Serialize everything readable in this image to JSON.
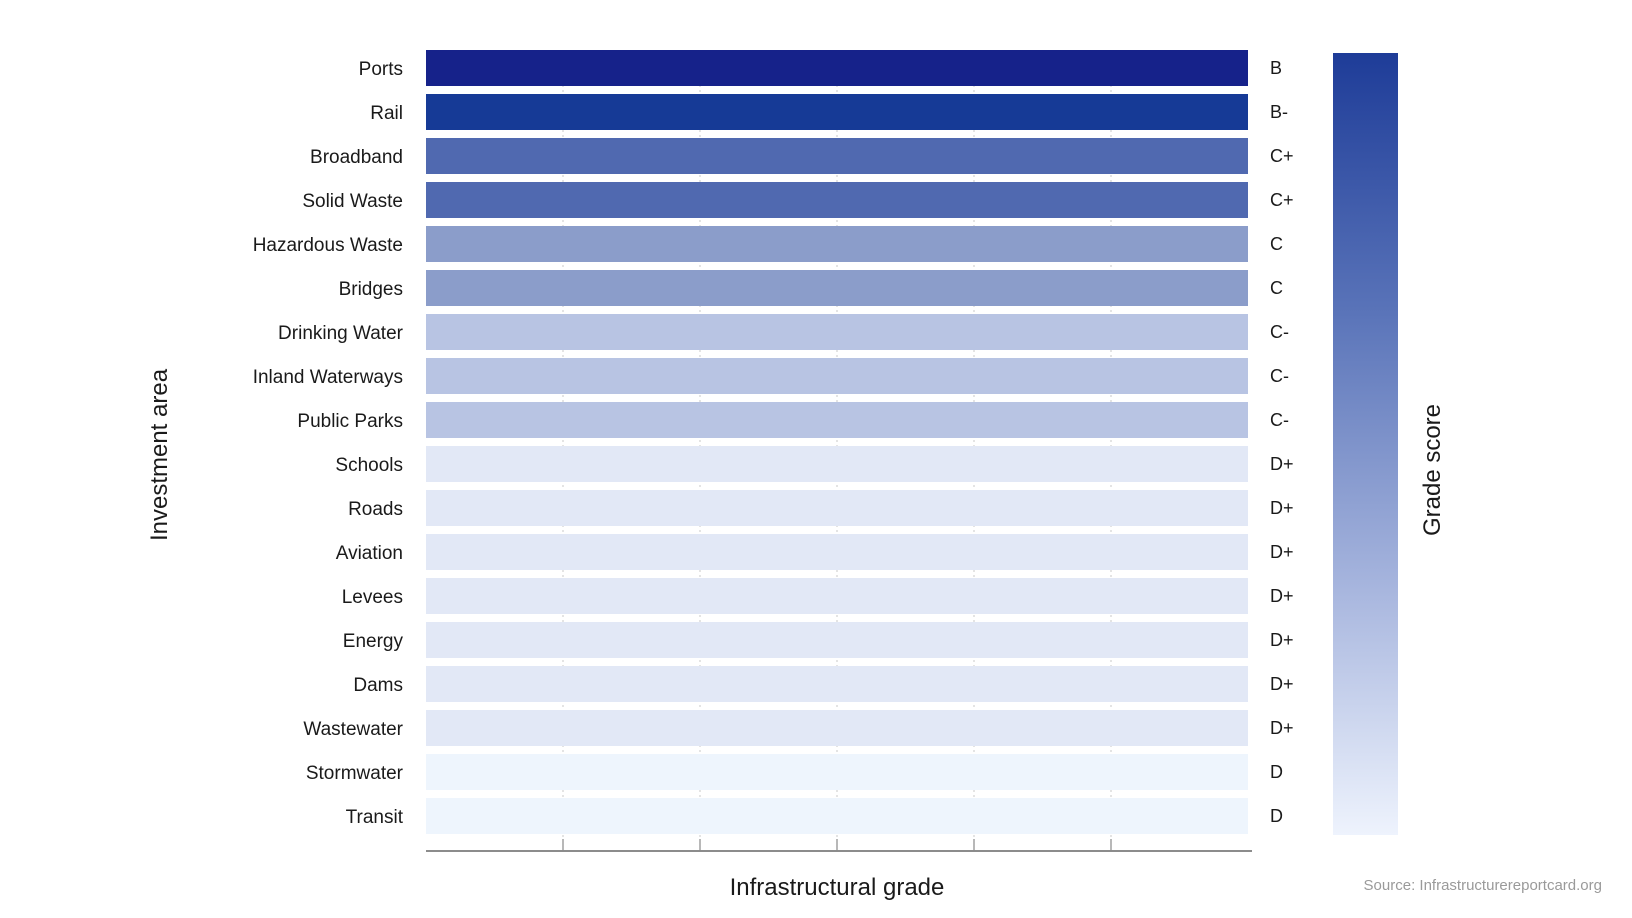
{
  "chart_data": {
    "type": "bar",
    "orientation": "horizontal",
    "xlabel": "Infrastructural grade",
    "ylabel": "Investment area",
    "colorbar_label": "Grade score",
    "source": "Source: Infrastructurereportcard.org",
    "categories": [
      "Ports",
      "Rail",
      "Broadband",
      "Solid Waste",
      "Hazardous Waste",
      "Bridges",
      "Drinking Water",
      "Inland Waterways",
      "Public Parks",
      "Schools",
      "Roads",
      "Aviation",
      "Levees",
      "Energy",
      "Dams",
      "Wastewater",
      "Stormwater",
      "Transit"
    ],
    "grades": [
      "B",
      "B-",
      "C+",
      "C+",
      "C",
      "C",
      "C-",
      "C-",
      "C-",
      "D+",
      "D+",
      "D+",
      "D+",
      "D+",
      "D+",
      "D+",
      "D",
      "D"
    ],
    "grade_colors": {
      "B": "#16228a",
      "B-": "#163a96",
      "C+": "#5069b0",
      "C": "#8b9dca",
      "C-": "#b8c4e3",
      "D+": "#e2e8f6",
      "D": "#eef5fd"
    },
    "colorbar_colors": [
      "#1e3c98",
      "#5a74b9",
      "#a3b2dc",
      "#eef3fd"
    ],
    "grid": true,
    "legend": "right"
  }
}
